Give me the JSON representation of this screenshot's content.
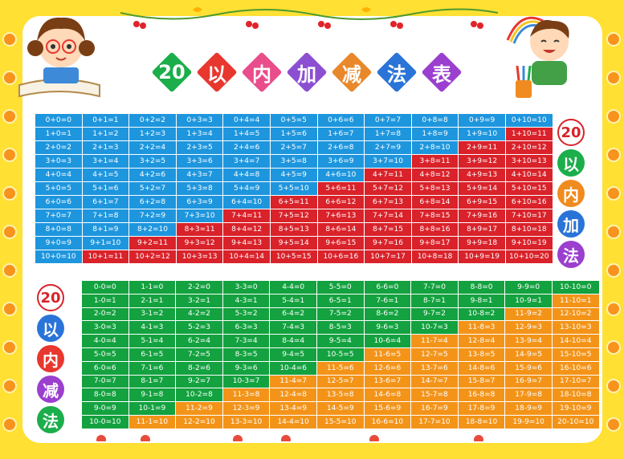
{
  "title": {
    "chars": [
      "20",
      "以",
      "内",
      "加",
      "减",
      "法",
      "表"
    ],
    "colors": [
      "#1BAE4B",
      "#E8372F",
      "#E94D8B",
      "#8C4FD1",
      "#E8882A",
      "#2A74D8",
      "#9B3FCF"
    ]
  },
  "add_label": {
    "chars": [
      "20",
      "以",
      "内",
      "加",
      "法"
    ],
    "colors": [
      "#FFFFFF",
      "#1BAE4B",
      "#F08B1F",
      "#2A74D8",
      "#9B3FCF"
    ]
  },
  "sub_label": {
    "chars": [
      "20",
      "以",
      "内",
      "减",
      "法"
    ],
    "colors": [
      "#FFFFFF",
      "#2A74D8",
      "#E8372F",
      "#9B3FCF",
      "#1BAE4B"
    ]
  },
  "colors": {
    "add_low": "#1E96DE",
    "add_high": "#D9222A",
    "sub_low": "#13A23F",
    "sub_high": "#F39419",
    "frame": "#FFE033"
  },
  "illustrations": [
    "girl-reading-book",
    "boy-drawing"
  ],
  "addition_rows": [
    [
      "0+0=0",
      "0+1=1",
      "0+2=2",
      "0+3=3",
      "0+4=4",
      "0+5=5",
      "0+6=6",
      "0+7=7",
      "0+8=8",
      "0+9=9",
      "0+10=10"
    ],
    [
      "1+0=1",
      "1+1=2",
      "1+2=3",
      "1+3=4",
      "1+4=5",
      "1+5=6",
      "1+6=7",
      "1+7=8",
      "1+8=9",
      "1+9=10",
      "1+10=11"
    ],
    [
      "2+0=2",
      "2+1=3",
      "2+2=4",
      "2+3=5",
      "2+4=6",
      "2+5=7",
      "2+6=8",
      "2+7=9",
      "2+8=10",
      "2+9=11",
      "2+10=12"
    ],
    [
      "3+0=3",
      "3+1=4",
      "3+2=5",
      "3+3=6",
      "3+4=7",
      "3+5=8",
      "3+6=9",
      "3+7=10",
      "3+8=11",
      "3+9=12",
      "3+10=13"
    ],
    [
      "4+0=4",
      "4+1=5",
      "4+2=6",
      "4+3=7",
      "4+4=8",
      "4+5=9",
      "4+6=10",
      "4+7=11",
      "4+8=12",
      "4+9=13",
      "4+10=14"
    ],
    [
      "5+0=5",
      "5+1=6",
      "5+2=7",
      "5+3=8",
      "5+4=9",
      "5+5=10",
      "5+6=11",
      "5+7=12",
      "5+8=13",
      "5+9=14",
      "5+10=15"
    ],
    [
      "6+0=6",
      "6+1=7",
      "6+2=8",
      "6+3=9",
      "6+4=10",
      "6+5=11",
      "6+6=12",
      "6+7=13",
      "6+8=14",
      "6+9=15",
      "6+10=16"
    ],
    [
      "7+0=7",
      "7+1=8",
      "7+2=9",
      "7+3=10",
      "7+4=11",
      "7+5=12",
      "7+6=13",
      "7+7=14",
      "7+8=15",
      "7+9=16",
      "7+10=17"
    ],
    [
      "8+0=8",
      "8+1=9",
      "8+2=10",
      "8+3=11",
      "8+4=12",
      "8+5=13",
      "8+6=14",
      "8+7=15",
      "8+8=16",
      "8+9=17",
      "8+10=18"
    ],
    [
      "9+0=9",
      "9+1=10",
      "9+2=11",
      "9+3=12",
      "9+4=13",
      "9+5=14",
      "9+6=15",
      "9+7=16",
      "9+8=17",
      "9+9=18",
      "9+10=19"
    ],
    [
      "10+0=10",
      "10+1=11",
      "10+2=12",
      "10+3=13",
      "10+4=14",
      "10+5=15",
      "10+6=16",
      "10+7=17",
      "10+8=18",
      "10+9=19",
      "10+10=20"
    ]
  ],
  "subtraction_rows": [
    [
      "0-0=0",
      "1-1=0",
      "2-2=0",
      "3-3=0",
      "4-4=0",
      "5-5=0",
      "6-6=0",
      "7-7=0",
      "8-8=0",
      "9-9=0",
      "10-10=0"
    ],
    [
      "1-0=1",
      "2-1=1",
      "3-2=1",
      "4-3=1",
      "5-4=1",
      "6-5=1",
      "7-6=1",
      "8-7=1",
      "9-8=1",
      "10-9=1",
      "11-10=1"
    ],
    [
      "2-0=2",
      "3-1=2",
      "4-2=2",
      "5-3=2",
      "6-4=2",
      "7-5=2",
      "8-6=2",
      "9-7=2",
      "10-8=2",
      "11-9=2",
      "12-10=2"
    ],
    [
      "3-0=3",
      "4-1=3",
      "5-2=3",
      "6-3=3",
      "7-4=3",
      "8-5=3",
      "9-6=3",
      "10-7=3",
      "11-8=3",
      "12-9=3",
      "13-10=3"
    ],
    [
      "4-0=4",
      "5-1=4",
      "6-2=4",
      "7-3=4",
      "8-4=4",
      "9-5=4",
      "10-6=4",
      "11-7=4",
      "12-8=4",
      "13-9=4",
      "14-10=4"
    ],
    [
      "5-0=5",
      "6-1=5",
      "7-2=5",
      "8-3=5",
      "9-4=5",
      "10-5=5",
      "11-6=5",
      "12-7=5",
      "13-8=5",
      "14-9=5",
      "15-10=5"
    ],
    [
      "6-0=6",
      "7-1=6",
      "8-2=6",
      "9-3=6",
      "10-4=6",
      "11-5=6",
      "12-6=6",
      "13-7=6",
      "14-8=6",
      "15-9=6",
      "16-10=6"
    ],
    [
      "7-0=7",
      "8-1=7",
      "9-2=7",
      "10-3=7",
      "11-4=7",
      "12-5=7",
      "13-6=7",
      "14-7=7",
      "15-8=7",
      "16-9=7",
      "17-10=7"
    ],
    [
      "8-0=8",
      "9-1=8",
      "10-2=8",
      "11-3=8",
      "12-4=8",
      "13-5=8",
      "14-6=8",
      "15-7=8",
      "16-8=8",
      "17-9=8",
      "18-10=8"
    ],
    [
      "9-0=9",
      "10-1=9",
      "11-2=9",
      "12-3=9",
      "13-4=9",
      "14-5=9",
      "15-6=9",
      "16-7=9",
      "17-8=9",
      "18-9=9",
      "19-10=9"
    ],
    [
      "10-0=10",
      "11-1=10",
      "12-2=10",
      "13-3=10",
      "14-4=10",
      "15-5=10",
      "16-6=10",
      "17-7=10",
      "18-8=10",
      "19-9=10",
      "20-10=10"
    ]
  ]
}
